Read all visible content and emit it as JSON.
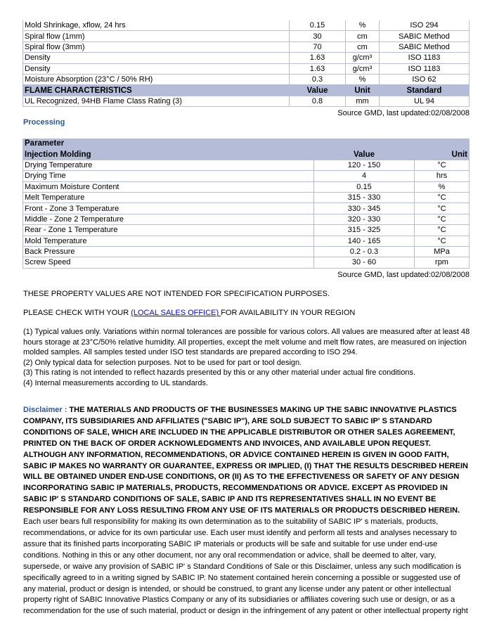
{
  "properties": {
    "rows": [
      [
        "Mold Shrinkage, xflow, 24 hrs",
        "0.15",
        "%",
        "ISO 294"
      ],
      [
        "Spiral flow (1mm)",
        "30",
        "cm",
        "SABIC Method"
      ],
      [
        "Spiral flow (3mm)",
        "70",
        "cm",
        "SABIC Method"
      ],
      [
        "Density",
        "1.63",
        "g/cm³",
        "ISO 1183"
      ],
      [
        "Density",
        "1.63",
        "g/cm³",
        "ISO 1183"
      ],
      [
        "Moisture Absorption (23°C / 50% RH)",
        "0.3",
        "%",
        "ISO 62"
      ]
    ],
    "flame_header": [
      "FLAME CHARACTERISTICS",
      "Value",
      "Unit",
      "Standard"
    ],
    "flame_rows": [
      [
        "UL Recognized, 94HB Flame Class Rating (3)",
        "0.8",
        "mm",
        "UL 94"
      ]
    ],
    "source": "Source GMD, last updated:02/08/2008"
  },
  "processing": {
    "title": "Processing",
    "header_param": "Parameter",
    "header": [
      "Injection Molding",
      "Value",
      "Unit"
    ],
    "rows": [
      [
        "Drying Temperature",
        "120 - 150",
        "°C"
      ],
      [
        "Drying Time",
        "4",
        "hrs"
      ],
      [
        "Maximum Moisture Content",
        "0.15",
        "%"
      ],
      [
        "Melt Temperature",
        "315 - 330",
        "°C"
      ],
      [
        "Front - Zone 3 Temperature",
        "330 - 345",
        "°C"
      ],
      [
        "Middle - Zone 2 Temperature",
        "320 - 330",
        "°C"
      ],
      [
        "Rear - Zone 1 Temperature",
        "315 - 325",
        "°C"
      ],
      [
        "Mold Temperature",
        "140 - 165",
        "°C"
      ],
      [
        "Back Pressure",
        "0.2 - 0.3",
        "MPa"
      ],
      [
        "Screw Speed",
        "30 - 60",
        "rpm"
      ]
    ],
    "source": "Source GMD, last updated:02/08/2008"
  },
  "notice": "THESE PROPERTY VALUES ARE NOT INTENDED FOR SPECIFICATION PURPOSES.",
  "check": {
    "before": "PLEASE CHECK WITH YOUR ",
    "link": "(LOCAL SALES OFFICE) ",
    "after": "FOR AVAILABILITY IN YOUR REGION"
  },
  "footnotes": [
    "(1) Typical values only. Variations within normal tolerances are possible for various colors. All values are measured after at least 48 hours storage at 23°C/50% relative humidity. All properties, except the melt volume and melt flow rates, are measured on injection molded samples. All samples tested under ISO test standards are prepared according to ISO 294.",
    "(2) Only typical data for selection purposes. Not to be used for part or tool design.",
    "(3) This rating is not intended to reflect hazards presented by this or any other material under actual fire conditions.",
    "(4) Internal measurements according to UL standards."
  ],
  "disclaimer": {
    "label": "Disclaimer : ",
    "bold": "THE MATERIALS AND PRODUCTS OF THE BUSINESSES MAKING UP THE SABIC INNOVATIVE PLASTICS COMPANY, ITS SUBSIDIARIES AND AFFILIATES (\"SABIC IP\"), ARE SOLD SUBJECT TO SABIC IP' S STANDARD CONDITIONS OF SALE, WHICH ARE INCLUDED IN THE APPLICABLE DISTRIBUTOR OR OTHER SALES AGREEMENT, PRINTED ON THE BACK OF ORDER ACKNOWLEDGMENTS AND INVOICES, AND AVAILABLE UPON REQUEST. ALTHOUGH ANY INFORMATION, RECOMMENDATIONS, OR ADVICE CONTAINED HEREIN IS GIVEN IN GOOD FAITH, SABIC IP MAKES NO WARRANTY OR GUARANTEE, EXPRESS OR IMPLIED, (I) THAT THE RESULTS DESCRIBED HEREIN WILL BE OBTAINED UNDER END-USE CONDITIONS, OR (II) AS TO THE EFFECTIVENESS OR SAFETY OF ANY DESIGN INCORPORATING SABIC IP MATERIALS, PRODUCTS, RECOMMENDATIONS OR ADVICE. EXCEPT AS PROVIDED IN SABIC IP' S STANDARD CONDITIONS OF SALE, SABIC IP AND ITS REPRESENTATIVES SHALL IN NO EVENT BE RESPONSIBLE FOR ANY LOSS RESULTING FROM ANY USE OF ITS MATERIALS OR PRODUCTS DESCRIBED HEREIN.",
    "normal": " Each user bears full responsibility for making its own determination as to the suitability of SABIC IP' s materials, products, recommendations, or advice for its own particular use. Each user must identify and perform all tests and analyses necessary to assure that its finished parts incorporating SABIC IP materials or products will be safe and suitable for use under end-use conditions. Nothing in this or any other document, nor any oral recommendation or advice, shall be deemed to alter, vary, supersede, or waive any provision of SABIC IP' s Standard Conditions of Sale or this Disclaimer, unless any such modification is specifically agreed to in a writing signed by SABIC IP. No statement contained herein concerning a possible or suggested use of any material, product or design is intended, or should be construed, to grant any license under any patent or other intellectual property right of SABIC Innovative Plastics Company or any of its subsidiaries or affiliates covering such use or design, or as a recommendation for the use of such material, product or design in the infringement of any patent or other intellectual property right"
  }
}
